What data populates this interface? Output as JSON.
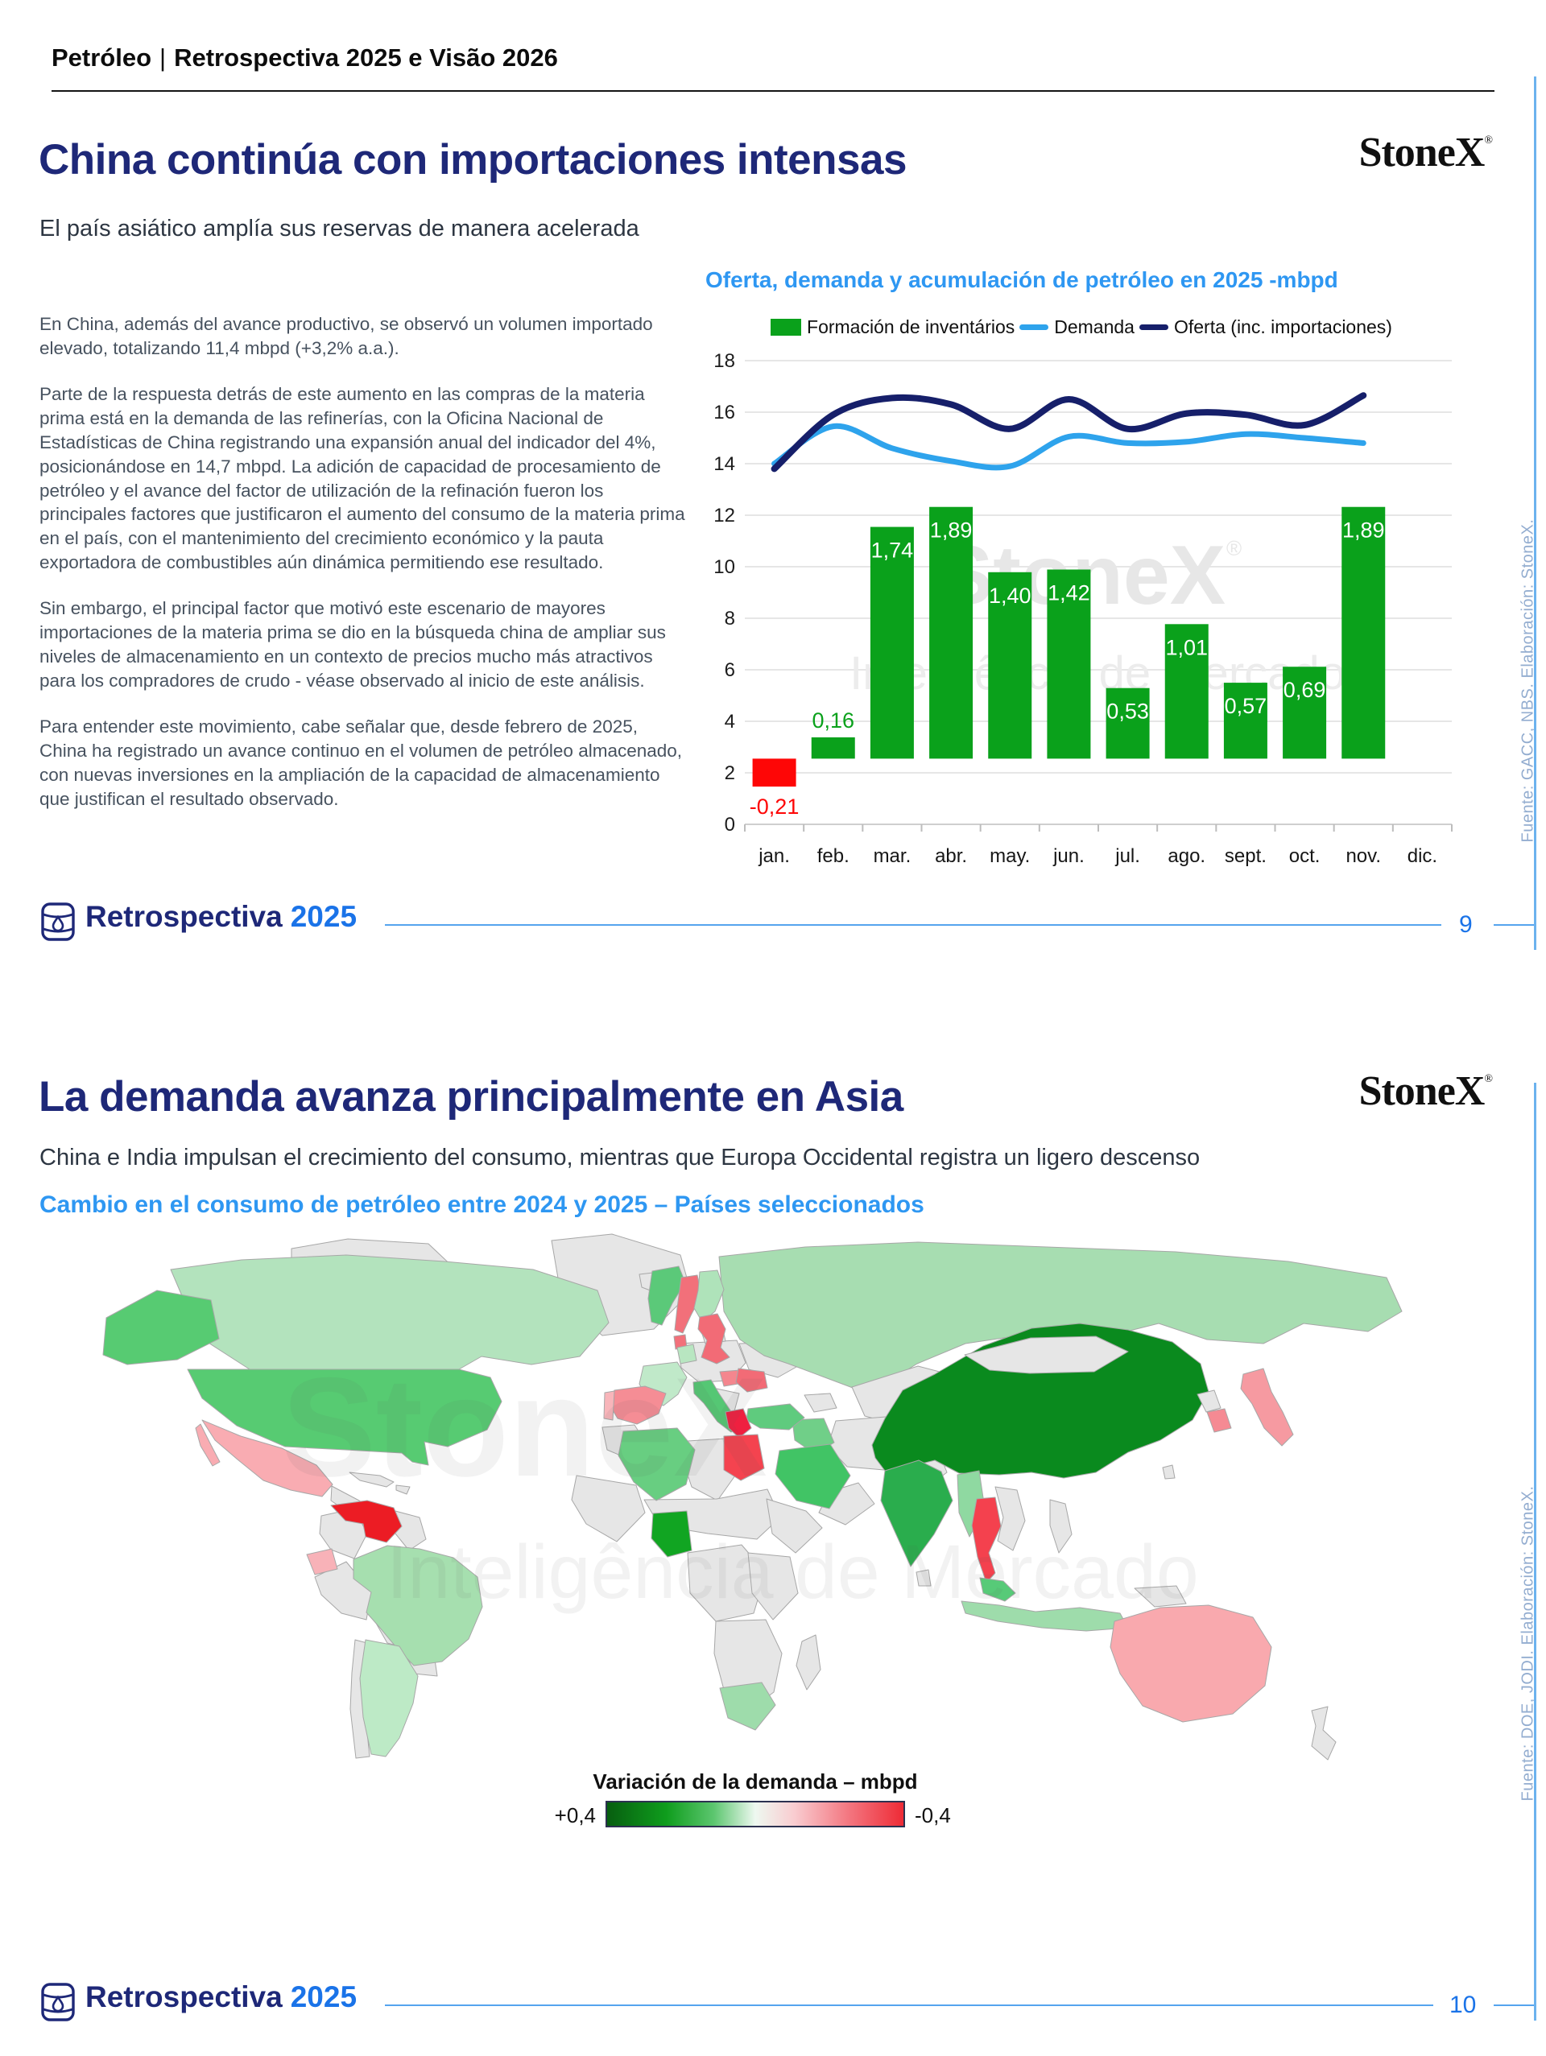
{
  "header": {
    "title_left": "Petróleo",
    "title_right": "Retrospectiva 2025 e Visão 2026"
  },
  "brand": {
    "name": "StoneX",
    "mark": "®"
  },
  "watermark": {
    "line1": "StoneX",
    "mark": "®",
    "line2": "Inteligência de Mercado"
  },
  "slide1": {
    "title": "China continúa con importaciones intensas",
    "subtitle": "El país asiático amplía sus reservas de manera acelerada",
    "paragraphs": [
      "En China, además del avance productivo, se observó un volumen importado elevado, totalizando 11,4 mbpd (+3,2% a.a.).",
      "Parte de la respuesta detrás de este aumento en las compras de la materia prima está en la demanda de las refinerías, con la Oficina Nacional de Estadísticas de China registrando una expansión anual del indicador del 4%, posicionándose en 14,7 mbpd. La adición de capacidad de procesamiento de petróleo y el avance del factor de utilización de la refinación fueron los principales factores que justificaron el aumento del consumo de la materia prima en el país, con el mantenimiento del crecimiento económico y la pauta exportadora de combustibles aún dinámica permitiendo ese resultado.",
      "Sin embargo, el principal factor que motivó este escenario de mayores importaciones de la materia prima se dio en la búsqueda china de ampliar sus niveles de almacenamiento en un contexto de precios mucho más atractivos para los compradores de crudo - véase observado al inicio de este análisis.",
      "Para entender este movimiento, cabe señalar que, desde febrero de 2025, China ha registrado un avance continuo en el volumen de petróleo almacenado, con nuevas inversiones en la ampliación de la capacidad de almacenamiento que justifican el resultado observado."
    ],
    "source": "Fuente: GACC, NBS. Elaboración: StoneX.",
    "footer": {
      "word": "Retrospectiva",
      "year": "2025",
      "page": "9"
    }
  },
  "slide2": {
    "title": "La demanda avanza principalmente en Asia",
    "subtitle": "China e India impulsan el crecimiento del consumo, mientras que Europa Occidental registra un ligero descenso",
    "chart_heading": "Cambio en el consumo de petróleo entre 2024 y 2025 – Países seleccionados",
    "map_legend": {
      "title": "Variación de la demanda – mbpd",
      "left": "+0,4",
      "right": "-0,4"
    },
    "source": "Fuente: DOE, JODI. Elaboración: StoneX.",
    "footer": {
      "word": "Retrospectiva",
      "year": "2025",
      "page": "10"
    }
  },
  "chart_data": [
    {
      "type": "bar",
      "title": "Oferta, demanda y acumulación de petróleo en 2025 -mbpd",
      "categories": [
        "jan.",
        "feb.",
        "mar.",
        "abr.",
        "may.",
        "jun.",
        "jul.",
        "ago.",
        "sept.",
        "oct.",
        "nov.",
        "dic."
      ],
      "ylim": [
        0,
        18
      ],
      "yticks": [
        0,
        2,
        4,
        6,
        8,
        10,
        12,
        14,
        16,
        18
      ],
      "grid": true,
      "legend_position": "top",
      "series": [
        {
          "name": "Formación de inventários",
          "kind": "bar",
          "values": [
            -0.21,
            0.16,
            1.74,
            1.89,
            1.4,
            1.42,
            0.53,
            1.01,
            0.57,
            0.69,
            1.89,
            null
          ],
          "labels": [
            "-0,21",
            "0,16",
            "1,74",
            "1,89",
            "1,40",
            "1,42",
            "0,53",
            "1,01",
            "0,57",
            "0,69",
            "1,89",
            ""
          ],
          "color_positive": "#0aa11b",
          "color_negative": "#fe0606"
        },
        {
          "name": "Demanda",
          "kind": "line",
          "color": "#2ea3ec",
          "values": [
            14.0,
            15.45,
            14.6,
            14.1,
            13.9,
            15.05,
            14.8,
            14.85,
            15.15,
            15.0,
            14.8
          ]
        },
        {
          "name": "Oferta (inc. importaciones)",
          "kind": "line",
          "color": "#161f6a",
          "values": [
            13.8,
            15.9,
            16.55,
            16.3,
            15.35,
            16.5,
            15.35,
            15.95,
            15.9,
            15.5,
            16.65
          ]
        }
      ],
      "bar_value_axis": {
        "baseline": 2.55,
        "scale": 5.17
      }
    },
    {
      "type": "heatmap",
      "subtype": "choropleth-world-map",
      "title": "Cambio en el consumo de petróleo entre 2024 y 2025 – Países seleccionados",
      "colorbar": {
        "title": "Variación de la demanda – mbpd",
        "max_label": "+0,4",
        "min_label": "-0,4",
        "max": 0.4,
        "min": -0.4,
        "scheme": "verde → blanco → rojo"
      },
      "no_data_color": "#e6e6e6",
      "regions": [
        {
          "id": "china",
          "name": "China",
          "direction": "up",
          "color": "#0a8a1e"
        },
        {
          "id": "india",
          "name": "India",
          "direction": "up",
          "color": "#2aad4d"
        },
        {
          "id": "usa",
          "name": "Estados Unidos",
          "direction": "up",
          "color": "#57cb72"
        },
        {
          "id": "canada",
          "name": "Canadá",
          "direction": "up",
          "color": "#b3e3bd"
        },
        {
          "id": "russia",
          "name": "Rusia",
          "direction": "up",
          "color": "#a7ddb1"
        },
        {
          "id": "brazil",
          "name": "Brasil",
          "direction": "up",
          "color": "#a6dfaf"
        },
        {
          "id": "argentina",
          "name": "Argentina",
          "direction": "up",
          "color": "#bdeac6"
        },
        {
          "id": "saudi",
          "name": "Arabia Saudita",
          "direction": "up",
          "color": "#41c465"
        },
        {
          "id": "iraq",
          "name": "Irak",
          "direction": "up",
          "color": "#70cf88"
        },
        {
          "id": "turkey",
          "name": "Turquía",
          "direction": "up",
          "color": "#5fcb7e"
        },
        {
          "id": "algeria",
          "name": "Argelia",
          "direction": "up",
          "color": "#68ce81"
        },
        {
          "id": "nigeria",
          "name": "Nigeria",
          "direction": "up",
          "color": "#11a522"
        },
        {
          "id": "southafrica",
          "name": "Sudáfrica",
          "direction": "up",
          "color": "#9edcab"
        },
        {
          "id": "norway",
          "name": "Noruega",
          "direction": "up",
          "color": "#5bc979"
        },
        {
          "id": "finland",
          "name": "Finlandia",
          "direction": "up",
          "color": "#afe3ba"
        },
        {
          "id": "ireland",
          "name": "Irlanda",
          "direction": "up",
          "color": "#b8e6c1"
        },
        {
          "id": "france",
          "name": "Francia",
          "direction": "up",
          "color": "#c0e9c9"
        },
        {
          "id": "italy",
          "name": "Italia",
          "direction": "up",
          "color": "#55c774"
        },
        {
          "id": "malaysia",
          "name": "Malasia",
          "direction": "up",
          "color": "#57ca78"
        },
        {
          "id": "myanmar",
          "name": "Myanmar",
          "direction": "up",
          "color": "#8fd9a1"
        },
        {
          "id": "indonesia",
          "name": "Indonesia",
          "direction": "up",
          "color": "#9edcab"
        },
        {
          "id": "venezuela",
          "name": "Venezuela",
          "direction": "down",
          "color": "#ec1c24"
        },
        {
          "id": "egypt",
          "name": "Egipto",
          "direction": "down",
          "color": "#f4434f"
        },
        {
          "id": "greece",
          "name": "Grecia",
          "direction": "down",
          "color": "#ef2040"
        },
        {
          "id": "thailand",
          "name": "Tailandia",
          "direction": "down",
          "color": "#f4414e"
        },
        {
          "id": "uk",
          "name": "Reino Unido",
          "direction": "down",
          "color": "#f26b76"
        },
        {
          "id": "sweden",
          "name": "Suecia",
          "direction": "down",
          "color": "#f2707a"
        },
        {
          "id": "denmark",
          "name": "Dinamarca",
          "direction": "down",
          "color": "#f2707a"
        },
        {
          "id": "romania",
          "name": "Rumanía",
          "direction": "down",
          "color": "#f26b76"
        },
        {
          "id": "hungary",
          "name": "Hungría",
          "direction": "down",
          "color": "#f4868e"
        },
        {
          "id": "spain",
          "name": "España",
          "direction": "down",
          "color": "#f58d95"
        },
        {
          "id": "portugal",
          "name": "Portugal",
          "direction": "down",
          "color": "#f8b5ba"
        },
        {
          "id": "southkorea",
          "name": "Corea del Sur",
          "direction": "down",
          "color": "#f58a93"
        },
        {
          "id": "japan",
          "name": "Japón",
          "direction": "down",
          "color": "#f69aa1"
        },
        {
          "id": "mexico",
          "name": "México",
          "direction": "down",
          "color": "#f9acb2"
        },
        {
          "id": "ecuador",
          "name": "Ecuador",
          "direction": "down",
          "color": "#f8b2b8"
        },
        {
          "id": "australia",
          "name": "Australia",
          "direction": "down",
          "color": "#f9a9ae"
        }
      ]
    }
  ]
}
